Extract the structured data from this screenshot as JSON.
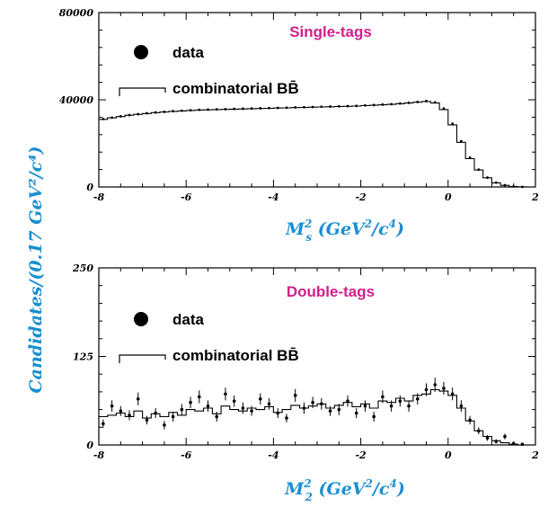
{
  "ylabel_shared": "Candidates/(0.17 GeV²/c⁴)",
  "chart_data": [
    {
      "type": "line",
      "title": "Single-tags",
      "xlabel": "M²s (GeV²/c⁴)",
      "xlabel_parts": {
        "m": "M",
        "sup2": "2",
        "sub": "s",
        "rest": " (GeV",
        "sup_gev": "2",
        "slash": "/c",
        "sup_c": "4",
        "close": ")"
      },
      "ylabel": "Candidates/(0.17 GeV²/c⁴)",
      "xlim": [
        -8,
        2
      ],
      "ylim": [
        0,
        80000
      ],
      "xticks": [
        "-8",
        "-6",
        "-4",
        "-2",
        "0",
        "2"
      ],
      "yticks": [
        "0",
        "40000",
        "80000"
      ],
      "legend": {
        "data": "data",
        "combinatorial": "combinatorial BB̄"
      },
      "series": [
        {
          "name": "data",
          "style": "points",
          "x": [
            -7.9,
            -7.7,
            -7.5,
            -7.3,
            -7.1,
            -6.9,
            -6.7,
            -6.5,
            -6.3,
            -6.1,
            -5.9,
            -5.7,
            -5.5,
            -5.3,
            -5.1,
            -4.9,
            -4.7,
            -4.5,
            -4.3,
            -4.1,
            -3.9,
            -3.7,
            -3.5,
            -3.3,
            -3.1,
            -2.9,
            -2.7,
            -2.5,
            -2.3,
            -2.1,
            -1.9,
            -1.7,
            -1.5,
            -1.3,
            -1.1,
            -0.9,
            -0.7,
            -0.5,
            -0.3,
            -0.1,
            0.1,
            0.3,
            0.5,
            0.7,
            0.9,
            1.1,
            1.3,
            1.5,
            1.7
          ],
          "y": [
            31200,
            31800,
            32400,
            33000,
            33400,
            33800,
            34200,
            34500,
            34800,
            35000,
            35200,
            35400,
            35500,
            35600,
            35700,
            35800,
            35900,
            36000,
            36100,
            36200,
            36300,
            36400,
            36500,
            36600,
            36700,
            36800,
            36900,
            37000,
            37100,
            37200,
            37400,
            37600,
            37800,
            38000,
            38300,
            38600,
            39000,
            39400,
            38800,
            36000,
            29000,
            21000,
            13500,
            8000,
            4300,
            2000,
            800,
            250,
            60
          ]
        },
        {
          "name": "combinatorial BB̄",
          "style": "step",
          "x": [
            -7.9,
            -7.7,
            -7.5,
            -7.3,
            -7.1,
            -6.9,
            -6.7,
            -6.5,
            -6.3,
            -6.1,
            -5.9,
            -5.7,
            -5.5,
            -5.3,
            -5.1,
            -4.9,
            -4.7,
            -4.5,
            -4.3,
            -4.1,
            -3.9,
            -3.7,
            -3.5,
            -3.3,
            -3.1,
            -2.9,
            -2.7,
            -2.5,
            -2.3,
            -2.1,
            -1.9,
            -1.7,
            -1.5,
            -1.3,
            -1.1,
            -0.9,
            -0.7,
            -0.5,
            -0.3,
            -0.1,
            0.1,
            0.3,
            0.5,
            0.7,
            0.9,
            1.1,
            1.3,
            1.5,
            1.7
          ],
          "y": [
            31000,
            31700,
            32300,
            32900,
            33300,
            33700,
            34100,
            34400,
            34700,
            34900,
            35100,
            35300,
            35400,
            35500,
            35600,
            35700,
            35800,
            35900,
            36000,
            36100,
            36200,
            36300,
            36400,
            36500,
            36600,
            36700,
            36800,
            36900,
            37000,
            37100,
            37300,
            37500,
            37700,
            37900,
            38200,
            38500,
            38900,
            39200,
            38500,
            35500,
            28500,
            20500,
            13000,
            7800,
            4200,
            1900,
            750,
            220,
            50
          ]
        }
      ]
    },
    {
      "type": "line",
      "title": "Double-tags",
      "xlabel": "M²2 (GeV²/c⁴)",
      "xlabel_parts": {
        "m": "M",
        "sup2": "2",
        "sub": "2",
        "rest": " (GeV",
        "sup_gev": "2",
        "slash": "/c",
        "sup_c": "4",
        "close": ")"
      },
      "ylabel": "Candidates/(0.17 GeV²/c⁴)",
      "xlim": [
        -8,
        2
      ],
      "ylim": [
        0,
        250
      ],
      "xticks": [
        "-8",
        "-6",
        "-4",
        "-2",
        "0",
        "2"
      ],
      "yticks": [
        "0",
        "125",
        "250"
      ],
      "legend": {
        "data": "data",
        "combinatorial": "combinatorial BB̄"
      },
      "series": [
        {
          "name": "data",
          "style": "points",
          "x": [
            -7.9,
            -7.7,
            -7.5,
            -7.3,
            -7.1,
            -6.9,
            -6.7,
            -6.5,
            -6.3,
            -6.1,
            -5.9,
            -5.7,
            -5.5,
            -5.3,
            -5.1,
            -4.9,
            -4.7,
            -4.5,
            -4.3,
            -4.1,
            -3.9,
            -3.7,
            -3.5,
            -3.3,
            -3.1,
            -2.9,
            -2.7,
            -2.5,
            -2.3,
            -2.1,
            -1.9,
            -1.7,
            -1.5,
            -1.3,
            -1.1,
            -0.9,
            -0.7,
            -0.5,
            -0.3,
            -0.1,
            0.1,
            0.3,
            0.5,
            0.7,
            0.9,
            1.1,
            1.3,
            1.5,
            1.7
          ],
          "y": [
            30,
            55,
            48,
            42,
            65,
            35,
            45,
            28,
            40,
            50,
            60,
            68,
            55,
            40,
            72,
            62,
            52,
            48,
            65,
            58,
            45,
            38,
            70,
            52,
            60,
            58,
            48,
            50,
            62,
            45,
            55,
            40,
            68,
            55,
            62,
            55,
            65,
            78,
            85,
            80,
            72,
            55,
            35,
            20,
            10,
            5,
            12,
            2,
            1
          ],
          "err": [
            6,
            8,
            7,
            7,
            9,
            6,
            7,
            6,
            7,
            8,
            8,
            9,
            8,
            7,
            9,
            8,
            8,
            7,
            8,
            8,
            7,
            6,
            9,
            8,
            8,
            8,
            7,
            8,
            8,
            7,
            8,
            7,
            9,
            8,
            8,
            8,
            8,
            9,
            10,
            9,
            9,
            8,
            6,
            5,
            4,
            3,
            4,
            2,
            1
          ]
        },
        {
          "name": "combinatorial BB̄",
          "style": "step",
          "x": [
            -7.9,
            -7.7,
            -7.5,
            -7.3,
            -7.1,
            -6.9,
            -6.7,
            -6.5,
            -6.3,
            -6.1,
            -5.9,
            -5.7,
            -5.5,
            -5.3,
            -5.1,
            -4.9,
            -4.7,
            -4.5,
            -4.3,
            -4.1,
            -3.9,
            -3.7,
            -3.5,
            -3.3,
            -3.1,
            -2.9,
            -2.7,
            -2.5,
            -2.3,
            -2.1,
            -1.9,
            -1.7,
            -1.5,
            -1.3,
            -1.1,
            -0.9,
            -0.7,
            -0.5,
            -0.3,
            -0.1,
            0.1,
            0.3,
            0.5,
            0.7,
            0.9,
            1.1,
            1.3,
            1.5,
            1.7
          ],
          "y": [
            40,
            42,
            45,
            40,
            48,
            38,
            44,
            40,
            46,
            42,
            50,
            48,
            52,
            44,
            55,
            50,
            48,
            52,
            50,
            54,
            46,
            50,
            56,
            52,
            55,
            58,
            52,
            56,
            60,
            54,
            58,
            52,
            62,
            60,
            66,
            62,
            70,
            72,
            78,
            76,
            70,
            52,
            34,
            20,
            12,
            6,
            3,
            1,
            0
          ]
        }
      ]
    }
  ]
}
